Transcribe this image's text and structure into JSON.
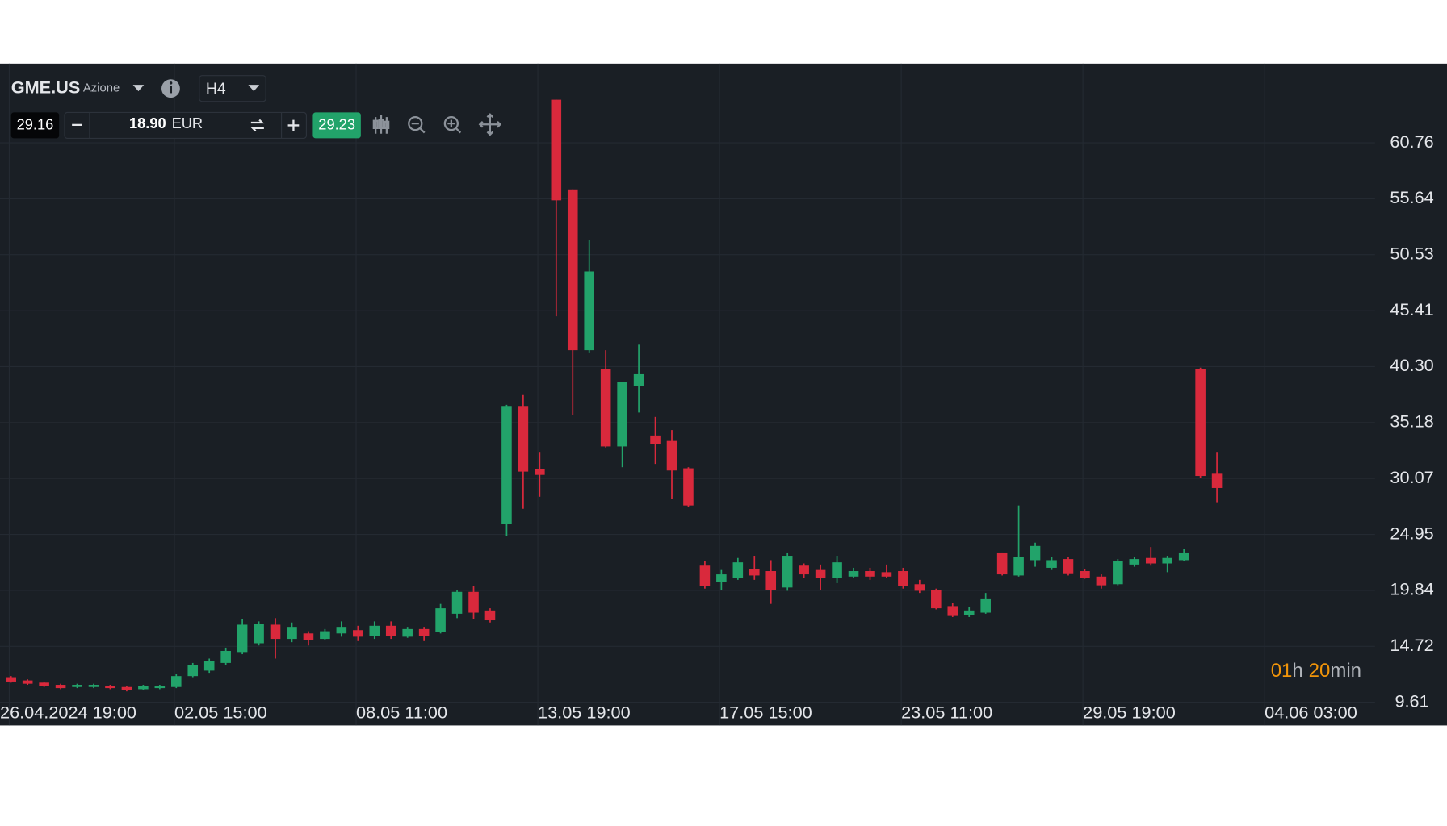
{
  "toolbar": {
    "symbol": "GME.US",
    "asset_type": "Azione",
    "timeframe": "H4",
    "bid": "29.16",
    "volume": "18.90",
    "currency": "EUR",
    "ask": "29.23"
  },
  "countdown": {
    "hours": "01",
    "hours_unit": "h",
    "minutes": "20",
    "minutes_unit": "min"
  },
  "chart_data": {
    "type": "candlestick",
    "up_color": "#22a36a",
    "down_color": "#d9293c",
    "grid": true,
    "ylim": [
      9.0,
      68.0
    ],
    "yticks": [
      9.61,
      14.72,
      19.84,
      24.95,
      {
        "value": 30.07,
        "label": "30.07"
      },
      35.18,
      {
        "value": 40.3,
        "label": "40.30"
      },
      45.41,
      50.53,
      55.64,
      60.76
    ],
    "categories": [
      "26.04.2024 19:00",
      null,
      null,
      null,
      null,
      null,
      null,
      null,
      null,
      null,
      "02.05 15:00",
      null,
      null,
      null,
      null,
      null,
      null,
      null,
      null,
      null,
      null,
      "08.05 11:00",
      null,
      null,
      null,
      null,
      null,
      null,
      null,
      null,
      null,
      null,
      "13.05 19:00",
      null,
      null,
      null,
      null,
      null,
      null,
      null,
      null,
      null,
      null,
      "17.05 15:00",
      null,
      null,
      null,
      null,
      null,
      null,
      null,
      null,
      null,
      null,
      "23.05 11:00",
      null,
      null,
      null,
      null,
      null,
      null,
      null,
      null,
      null,
      null,
      "29.05 19:00",
      null,
      null,
      null,
      null,
      null,
      null,
      null,
      null,
      null,
      null,
      "04.06 03:00",
      null,
      null,
      null
    ],
    "open": [
      11.9,
      11.6,
      11.4,
      11.2,
      11.0,
      11.0,
      11.1,
      11.0,
      10.8,
      10.9,
      11.0,
      12.0,
      12.5,
      13.2,
      14.2,
      15.0,
      16.7,
      15.4,
      15.9,
      15.4,
      15.9,
      16.2,
      15.7,
      16.6,
      15.6,
      16.3,
      16.0,
      17.7,
      19.7,
      18.0,
      25.9,
      36.7,
      30.9,
      64.7,
      56.5,
      41.8,
      40.1,
      33.0,
      38.5,
      34.0,
      33.5,
      31.0,
      22.1,
      20.6,
      21.0,
      21.8,
      21.6,
      20.1,
      22.1,
      21.7,
      21.0,
      21.1,
      21.6,
      21.5,
      21.6,
      20.4,
      19.9,
      18.4,
      17.6,
      17.8,
      23.3,
      21.2,
      22.6,
      21.9,
      22.7,
      21.6,
      21.1,
      20.4,
      22.2,
      22.8,
      22.3,
      22.6,
      40.1,
      30.5,
      null,
      null,
      null,
      null,
      null,
      null
    ],
    "high": [
      12.0,
      11.7,
      11.5,
      11.3,
      11.3,
      11.3,
      11.2,
      11.1,
      11.2,
      11.2,
      12.2,
      13.2,
      13.6,
      14.6,
      17.2,
      17.0,
      17.3,
      16.9,
      16.1,
      16.3,
      17.0,
      16.6,
      17.0,
      17.0,
      16.5,
      16.5,
      18.6,
      19.9,
      20.2,
      18.2,
      36.8,
      37.7,
      32.5,
      64.7,
      56.5,
      51.9,
      41.8,
      38.9,
      42.3,
      35.7,
      34.5,
      31.1,
      22.5,
      21.7,
      22.8,
      23.0,
      22.6,
      23.3,
      22.3,
      22.2,
      23.0,
      21.9,
      21.9,
      22.2,
      21.9,
      20.8,
      20.0,
      18.7,
      18.3,
      19.6,
      23.3,
      27.6,
      24.2,
      22.9,
      22.9,
      21.8,
      21.3,
      22.7,
      22.9,
      23.8,
      23.0,
      23.6,
      40.2,
      32.5,
      null,
      null,
      null,
      null,
      null,
      null
    ],
    "low": [
      11.4,
      11.2,
      11.0,
      10.8,
      10.9,
      10.9,
      10.8,
      10.6,
      10.7,
      10.8,
      10.9,
      11.9,
      12.3,
      13.0,
      14.0,
      14.8,
      13.6,
      15.1,
      14.8,
      15.3,
      15.6,
      15.2,
      15.4,
      15.4,
      15.5,
      15.2,
      15.9,
      17.3,
      17.2,
      16.9,
      24.8,
      27.3,
      28.4,
      44.9,
      35.9,
      41.6,
      32.9,
      31.1,
      36.1,
      31.4,
      28.2,
      27.5,
      20.0,
      19.9,
      20.8,
      20.8,
      18.6,
      19.8,
      21.0,
      19.9,
      20.5,
      21.0,
      20.8,
      21.0,
      20.0,
      19.6,
      18.1,
      17.4,
      17.4,
      17.7,
      21.2,
      21.1,
      22.0,
      21.7,
      21.2,
      20.9,
      20.0,
      20.3,
      22.0,
      22.1,
      21.5,
      22.5,
      30.1,
      27.9,
      null,
      null,
      null,
      null,
      null,
      null
    ],
    "close": [
      11.5,
      11.3,
      11.1,
      10.9,
      11.2,
      11.2,
      10.9,
      10.7,
      11.1,
      11.1,
      12.0,
      13.0,
      13.4,
      14.3,
      16.7,
      16.8,
      15.4,
      16.5,
      15.3,
      16.1,
      16.5,
      15.6,
      16.6,
      15.7,
      16.3,
      15.7,
      18.2,
      19.7,
      17.8,
      17.1,
      36.7,
      30.7,
      30.4,
      55.5,
      41.8,
      49.0,
      33.0,
      38.9,
      39.6,
      33.2,
      30.8,
      27.6,
      20.2,
      21.3,
      22.4,
      21.2,
      19.9,
      23.0,
      21.3,
      21.0,
      22.4,
      21.6,
      21.1,
      21.1,
      20.2,
      19.8,
      18.2,
      17.5,
      18.0,
      19.1,
      21.3,
      22.9,
      23.9,
      22.6,
      21.4,
      21.0,
      20.3,
      22.5,
      22.7,
      22.3,
      22.8,
      23.3,
      30.3,
      29.2,
      null,
      null,
      null,
      null,
      null,
      null
    ]
  }
}
